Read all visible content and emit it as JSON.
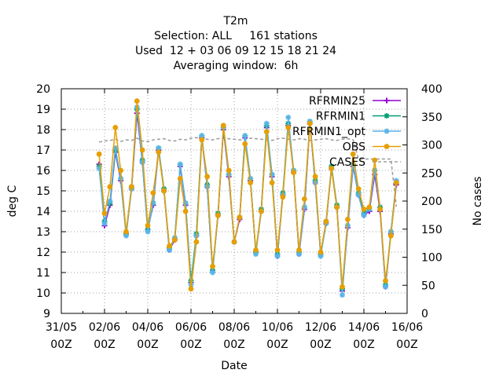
{
  "chart_data": {
    "type": "line",
    "title_lines": [
      "T2m",
      "Selection: ALL     161 stations",
      "Used  12 + 03 06 09 12 15 18 21 24",
      "Averaging window:  6h"
    ],
    "xlabel": "Date",
    "ylabel": "deg C",
    "y2label": "No cases",
    "x_ticks": [
      {
        "line1": "31/05",
        "line2": "00Z",
        "day": "2023-05-31"
      },
      {
        "line1": "02/06",
        "line2": "00Z",
        "day": "2023-06-02"
      },
      {
        "line1": "04/06",
        "line2": "00Z",
        "day": "2023-06-04"
      },
      {
        "line1": "06/06",
        "line2": "00Z",
        "day": "2023-06-06"
      },
      {
        "line1": "08/06",
        "line2": "00Z",
        "day": "2023-06-08"
      },
      {
        "line1": "10/06",
        "line2": "00Z",
        "day": "2023-06-10"
      },
      {
        "line1": "12/06",
        "line2": "00Z",
        "day": "2023-06-12"
      },
      {
        "line1": "14/06",
        "line2": "00Z",
        "day": "2023-06-14"
      },
      {
        "line1": "16/06",
        "line2": "00Z",
        "day": "2023-06-16"
      }
    ],
    "xlim": [
      "2023-05-31T00:00",
      "2023-06-16T00:00"
    ],
    "ylim": [
      9,
      20
    ],
    "y_ticks": [
      "9",
      "10",
      "11",
      "12",
      "13",
      "14",
      "15",
      "16",
      "17",
      "18",
      "19",
      "20"
    ],
    "y2lim": [
      0,
      400
    ],
    "y2_ticks": [
      "0",
      "50",
      "100",
      "150",
      "200",
      "250",
      "300",
      "350",
      "400"
    ],
    "grid": true,
    "legend_position": "top-right",
    "x": [
      "2023-06-01T18:00",
      "2023-06-02T00:00",
      "2023-06-02T06:00",
      "2023-06-02T12:00",
      "2023-06-02T18:00",
      "2023-06-03T00:00",
      "2023-06-03T06:00",
      "2023-06-03T12:00",
      "2023-06-03T18:00",
      "2023-06-04T00:00",
      "2023-06-04T06:00",
      "2023-06-04T12:00",
      "2023-06-04T18:00",
      "2023-06-05T00:00",
      "2023-06-05T06:00",
      "2023-06-05T12:00",
      "2023-06-05T18:00",
      "2023-06-06T00:00",
      "2023-06-06T06:00",
      "2023-06-06T12:00",
      "2023-06-06T18:00",
      "2023-06-07T00:00",
      "2023-06-07T06:00",
      "2023-06-07T12:00",
      "2023-06-07T18:00",
      "2023-06-08T00:00",
      "2023-06-08T06:00",
      "2023-06-08T12:00",
      "2023-06-08T18:00",
      "2023-06-09T00:00",
      "2023-06-09T06:00",
      "2023-06-09T12:00",
      "2023-06-09T18:00",
      "2023-06-10T00:00",
      "2023-06-10T06:00",
      "2023-06-10T12:00",
      "2023-06-10T18:00",
      "2023-06-11T00:00",
      "2023-06-11T06:00",
      "2023-06-11T12:00",
      "2023-06-11T18:00",
      "2023-06-12T00:00",
      "2023-06-12T06:00",
      "2023-06-12T12:00",
      "2023-06-12T18:00",
      "2023-06-13T00:00",
      "2023-06-13T06:00",
      "2023-06-13T12:00",
      "2023-06-13T18:00",
      "2023-06-14T00:00",
      "2023-06-14T06:00",
      "2023-06-14T12:00",
      "2023-06-14T18:00",
      "2023-06-15T00:00",
      "2023-06-15T06:00",
      "2023-06-15T12:00"
    ],
    "series": [
      {
        "name": "RFRMIN25",
        "color": "#9400d3",
        "marker": "plus",
        "axis": "left",
        "values": [
          16.3,
          13.3,
          14.3,
          16.9,
          15.5,
          12.9,
          15.1,
          18.8,
          16.4,
          13.1,
          14.3,
          17.0,
          15.0,
          12.1,
          12.6,
          16.2,
          14.3,
          10.5,
          12.8,
          17.6,
          15.2,
          11.1,
          13.8,
          18.0,
          15.7,
          12.5,
          13.6,
          17.6,
          15.5,
          12.0,
          14.0,
          18.1,
          15.7,
          11.8,
          14.8,
          18.2,
          15.9,
          11.9,
          14.1,
          18.3,
          15.4,
          11.9,
          13.4,
          16.1,
          14.2,
          10.1,
          13.2,
          16.2,
          14.8,
          13.8,
          14.0,
          15.8,
          14.0,
          10.3,
          12.9,
          15.3
        ]
      },
      {
        "name": "RFRMIN1",
        "color": "#009e73",
        "marker": "star",
        "axis": "left",
        "values": [
          16.2,
          13.5,
          14.4,
          17.0,
          15.6,
          12.9,
          15.2,
          19.0,
          16.5,
          13.1,
          14.4,
          17.1,
          15.1,
          12.2,
          12.7,
          16.3,
          14.4,
          10.6,
          12.9,
          17.7,
          15.3,
          11.1,
          13.9,
          18.1,
          15.8,
          12.5,
          13.7,
          17.7,
          15.6,
          12.0,
          14.1,
          18.2,
          15.8,
          11.9,
          14.9,
          18.3,
          16.0,
          12.0,
          14.2,
          18.4,
          15.5,
          11.9,
          13.5,
          16.2,
          14.3,
          10.2,
          13.3,
          16.3,
          14.9,
          13.9,
          14.1,
          16.0,
          14.2,
          10.4,
          13.0,
          15.4
        ]
      },
      {
        "name": "RFRMIN1_opt",
        "color": "#56b4e9",
        "marker": "star",
        "axis": "left",
        "values": [
          16.1,
          13.4,
          14.5,
          17.1,
          15.6,
          12.8,
          15.1,
          19.1,
          16.4,
          13.0,
          14.4,
          17.1,
          15.0,
          12.1,
          12.7,
          16.3,
          14.4,
          10.4,
          12.8,
          17.7,
          15.2,
          11.0,
          13.8,
          18.1,
          15.8,
          12.5,
          13.7,
          17.7,
          15.6,
          11.9,
          14.0,
          18.3,
          15.8,
          11.8,
          14.8,
          18.6,
          16.0,
          11.9,
          14.2,
          18.4,
          15.4,
          11.8,
          13.4,
          16.1,
          14.2,
          9.9,
          13.3,
          16.3,
          14.8,
          13.8,
          14.1,
          16.0,
          14.1,
          10.3,
          13.0,
          15.5
        ]
      },
      {
        "name": "OBS",
        "color": "#e69f00",
        "marker": "circle",
        "axis": "left",
        "values": [
          16.8,
          13.9,
          15.2,
          18.1,
          16.0,
          13.0,
          15.2,
          19.4,
          17.0,
          13.3,
          14.9,
          16.9,
          15.0,
          12.3,
          12.6,
          15.6,
          14.0,
          10.2,
          12.5,
          17.5,
          15.7,
          11.3,
          13.8,
          18.2,
          16.0,
          12.5,
          13.7,
          17.3,
          15.4,
          12.1,
          14.0,
          17.9,
          15.4,
          12.1,
          14.7,
          18.1,
          15.9,
          12.1,
          14.6,
          18.3,
          15.7,
          12.0,
          13.5,
          16.1,
          14.2,
          10.3,
          13.6,
          16.8,
          15.1,
          14.1,
          14.2,
          16.5,
          14.1,
          10.6,
          12.8,
          15.4
        ]
      },
      {
        "name": "CASES",
        "color": "#a0a0a0",
        "marker": "none",
        "dash": true,
        "axis": "right",
        "values": [
          305,
          307,
          308,
          310,
          306,
          309,
          308,
          312,
          307,
          306,
          309,
          310,
          311,
          308,
          307,
          310,
          309,
          312,
          313,
          311,
          310,
          309,
          311,
          312,
          311,
          310,
          309,
          310,
          312,
          311,
          310,
          309,
          308,
          311,
          312,
          310,
          309,
          311,
          310,
          308,
          309,
          310,
          311,
          309,
          308,
          310,
          311,
          309,
          275,
          275,
          275,
          275,
          275,
          275,
          275,
          190
        ]
      }
    ]
  }
}
